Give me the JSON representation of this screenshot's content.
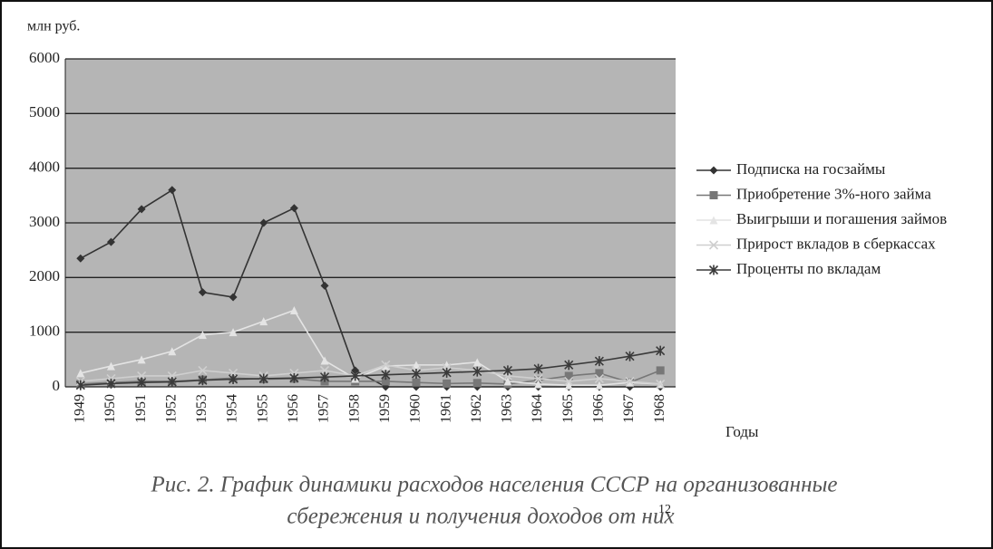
{
  "chart_data": {
    "type": "line",
    "y_label": "млн руб.",
    "x_label": "Годы",
    "caption": [
      "Рис. 2. График динамики расходов населения СССР на организованные",
      "сбережения и получения доходов от них"
    ],
    "caption_note": "12",
    "categories": [
      "1949",
      "1950",
      "1951",
      "1952",
      "1953",
      "1954",
      "1955",
      "1956",
      "1957",
      "1958",
      "1959",
      "1960",
      "1961",
      "1962",
      "1963",
      "1964",
      "1965",
      "1966",
      "1967",
      "1968"
    ],
    "ylim": [
      0,
      6000
    ],
    "yticks": [
      0,
      1000,
      2000,
      3000,
      4000,
      5000,
      6000
    ],
    "grid": true,
    "legend": "right",
    "series": [
      {
        "name": "Подписка на госзаймы",
        "color": "#333333",
        "marker": "diamond",
        "values": [
          2350,
          2650,
          3250,
          3600,
          1730,
          1640,
          3000,
          3270,
          1850,
          300,
          0,
          0,
          0,
          0,
          0,
          0,
          0,
          0,
          0,
          0
        ]
      },
      {
        "name": "Приобретение 3%-ного займа",
        "color": "#777777",
        "marker": "square",
        "values": [
          50,
          80,
          100,
          100,
          130,
          160,
          140,
          150,
          100,
          100,
          100,
          80,
          60,
          70,
          50,
          120,
          200,
          250,
          80,
          300
        ]
      },
      {
        "name": "Выигрыши и погашения займов",
        "color": "#e4e4e4",
        "marker": "triangle",
        "values": [
          250,
          380,
          500,
          650,
          950,
          1000,
          1200,
          1400,
          480,
          150,
          380,
          400,
          400,
          450,
          100,
          50,
          30,
          30,
          80,
          50
        ]
      },
      {
        "name": "Прирост вкладов в сберкассах",
        "color": "#cfcfcf",
        "marker": "cross",
        "values": [
          100,
          150,
          200,
          200,
          300,
          250,
          200,
          250,
          300,
          200,
          400,
          300,
          350,
          300,
          200,
          150,
          100,
          150,
          100,
          50
        ]
      },
      {
        "name": "Проценты по вкладам",
        "color": "#3a3a3a",
        "marker": "star",
        "values": [
          30,
          60,
          80,
          90,
          120,
          140,
          150,
          160,
          180,
          200,
          220,
          240,
          260,
          280,
          300,
          330,
          400,
          470,
          560,
          660
        ]
      }
    ]
  }
}
